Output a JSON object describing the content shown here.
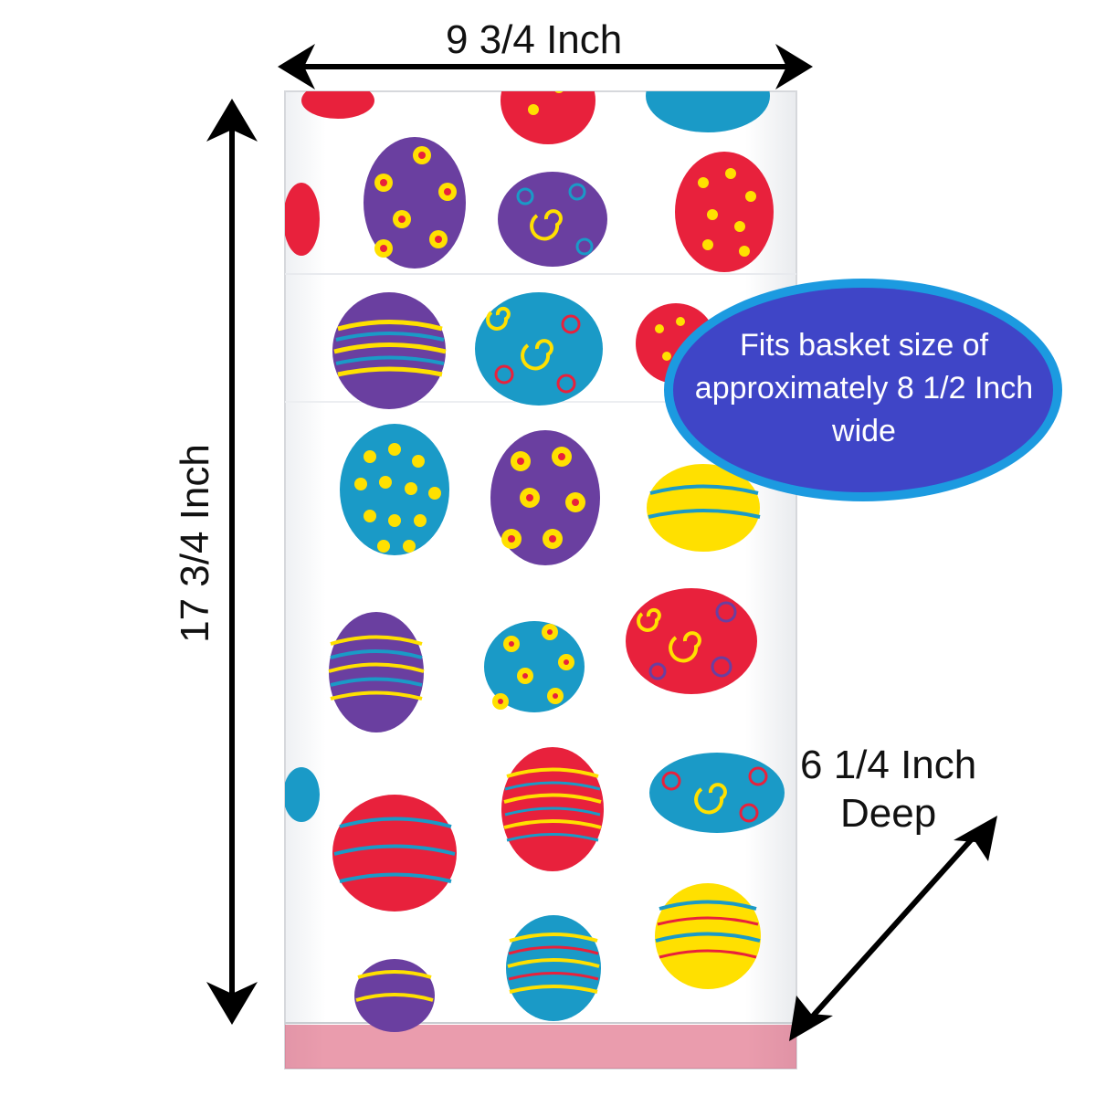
{
  "product": {
    "description": "Clear cellophane bag printed with decorated Easter eggs",
    "bag_color": "#ffffff",
    "egg_colors": [
      "#e8213c",
      "#6a3fa0",
      "#1a9ac7",
      "#ffe000"
    ]
  },
  "dimensions": {
    "width_label": "9 3/4 Inch",
    "height_label": "17 3/4 Inch",
    "depth_label_line1": "6 1/4 Inch",
    "depth_label_line2": "Deep"
  },
  "callout": {
    "text": "Fits basket size of approximately 8 1/2 Inch wide",
    "fill_color": "#3f45c7",
    "border_color": "#1c9ae0"
  },
  "icons": [
    "double-arrow-icon"
  ]
}
